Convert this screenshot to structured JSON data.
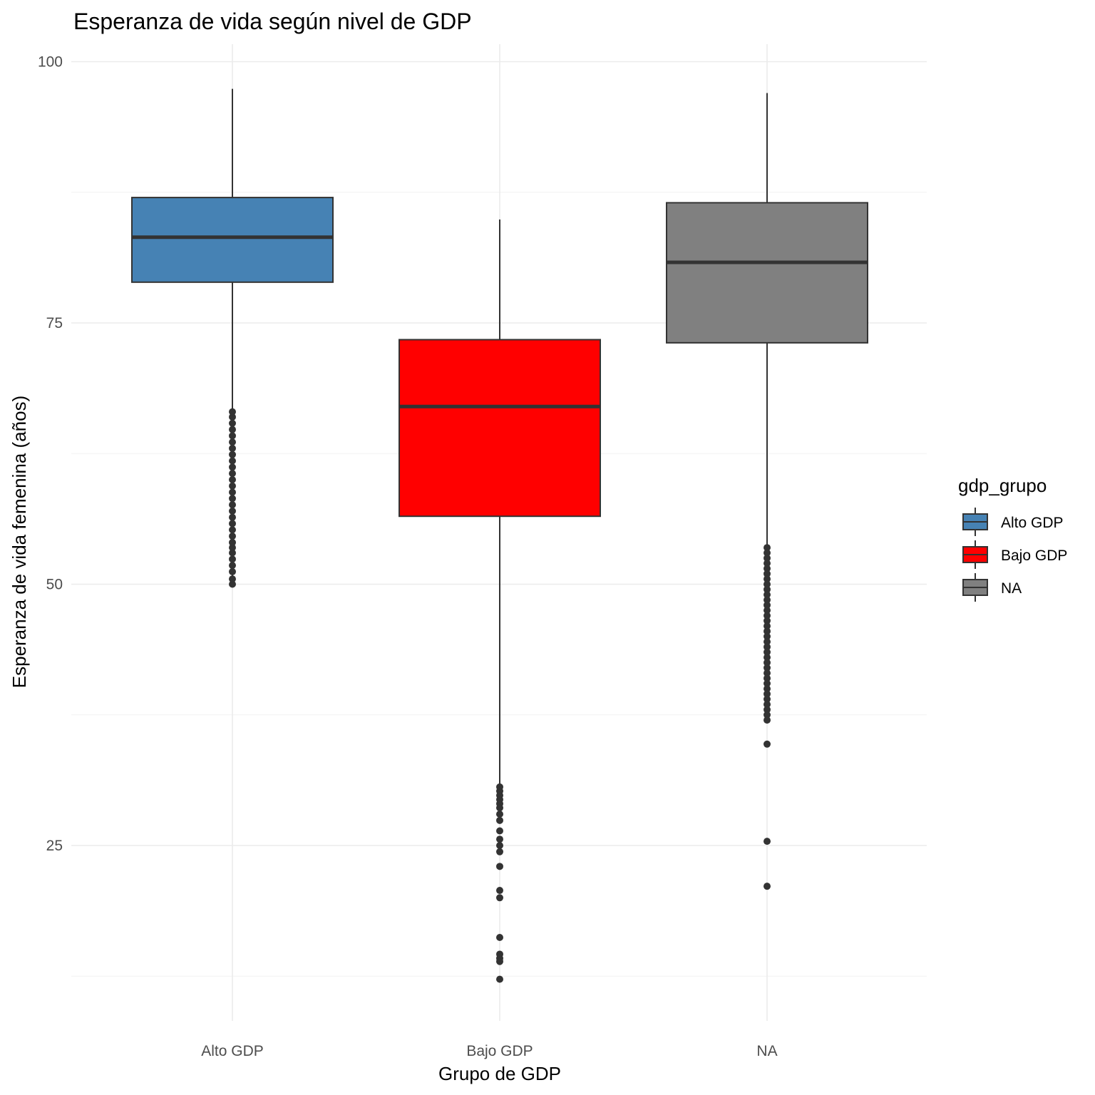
{
  "chart_data": {
    "type": "boxplot",
    "title": "Esperanza de vida según nivel de GDP",
    "xlabel": "Grupo de GDP",
    "ylabel": "Esperanza de vida femenina (años)",
    "categories": [
      "Alto GDP",
      "Bajo GDP",
      "NA"
    ],
    "ylim": [
      4.5,
      102
    ],
    "y_ticks": [
      25,
      50,
      75,
      100
    ],
    "grid": true,
    "legend": {
      "title": "gdp_grupo",
      "position": "right",
      "entries": [
        "Alto GDP",
        "Bajo GDP",
        "NA"
      ]
    },
    "series": [
      {
        "name": "Alto GDP",
        "color": "#4682B4",
        "whisker_low": 50.0,
        "q1": 78.9,
        "median": 83.2,
        "q3": 87.0,
        "whisker_high": 97.4,
        "outliers": [
          50.0,
          50.5,
          51.2,
          51.8,
          52.4,
          53.0,
          53.5,
          54.0,
          54.6,
          55.2,
          55.8,
          56.4,
          57.0,
          57.6,
          58.2,
          58.8,
          59.4,
          60.0,
          60.6,
          61.2,
          61.8,
          62.4,
          63.0,
          63.6,
          64.2,
          64.8,
          65.4,
          66.0,
          66.5
        ]
      },
      {
        "name": "Bajo GDP",
        "color": "#FF0000",
        "whisker_low": 30.6,
        "q1": 56.5,
        "median": 67.0,
        "q3": 73.4,
        "whisker_high": 84.9,
        "outliers": [
          30.6,
          30.2,
          29.8,
          29.4,
          29.0,
          28.6,
          28.0,
          27.4,
          26.4,
          25.6,
          25.0,
          24.4,
          23.0,
          20.7,
          20.0,
          16.2,
          14.6,
          14.2,
          13.9,
          12.2
        ]
      },
      {
        "name": "NA",
        "color": "#808080",
        "whisker_low": 36.9,
        "q1": 73.1,
        "median": 80.8,
        "q3": 86.5,
        "whisker_high": 97.0,
        "outliers": [
          53.5,
          53.0,
          52.5,
          52.0,
          51.5,
          51.0,
          50.5,
          50.0,
          49.5,
          49.0,
          48.5,
          48.0,
          47.5,
          47.0,
          46.5,
          46.0,
          45.5,
          45.0,
          44.5,
          44.0,
          43.5,
          43.0,
          42.5,
          42.0,
          41.5,
          41.0,
          40.5,
          40.0,
          39.5,
          39.0,
          38.5,
          38.0,
          37.5,
          37.0,
          34.7,
          25.4,
          21.1
        ]
      }
    ]
  }
}
